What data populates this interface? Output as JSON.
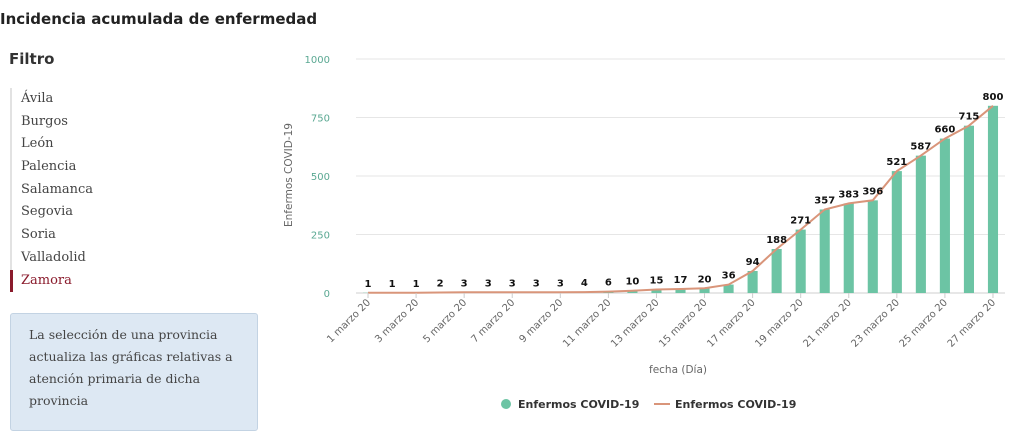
{
  "page_title": "Incidencia acumulada de enfermedad",
  "sidebar": {
    "title": "Filtro",
    "items": [
      {
        "label": "Ávila"
      },
      {
        "label": "Burgos"
      },
      {
        "label": "León"
      },
      {
        "label": "Palencia"
      },
      {
        "label": "Salamanca"
      },
      {
        "label": "Segovia"
      },
      {
        "label": "Soria"
      },
      {
        "label": "Valladolid"
      },
      {
        "label": "Zamora",
        "selected": true
      }
    ],
    "info_text": "La selección de una provincia actualiza las gráficas relativas a atención primaria de dicha provincia"
  },
  "colors": {
    "bar": "#6cc4a4",
    "line": "#d9957a",
    "selected": "#8a1b2c",
    "info_bg": "#dde8f3"
  },
  "chart_data": {
    "type": "bar",
    "xlabel": "fecha (Día)",
    "ylabel": "Enfermos COVID-19",
    "ylim": [
      0,
      1000
    ],
    "yticks": [
      0,
      250,
      500,
      750,
      1000
    ],
    "grid": true,
    "legend_position": "bottom",
    "categories": [
      "1 marzo 20",
      "2 marzo 20",
      "3 marzo 20",
      "4 marzo 20",
      "5 marzo 20",
      "6 marzo 20",
      "7 marzo 20",
      "8 marzo 20",
      "9 marzo 20",
      "10 marzo 20",
      "11 marzo 20",
      "12 marzo 20",
      "13 marzo 20",
      "14 marzo 20",
      "15 marzo 20",
      "16 marzo 20",
      "17 marzo 20",
      "18 marzo 20",
      "19 marzo 20",
      "20 marzo 20",
      "21 marzo 20",
      "22 marzo 20",
      "23 marzo 20",
      "24 marzo 20",
      "25 marzo 20",
      "26 marzo 20",
      "27 marzo 20"
    ],
    "tick_labels": [
      "1 marzo 20",
      "3 marzo 20",
      "5 marzo 20",
      "7 marzo 20",
      "9 marzo 20",
      "11 marzo 20",
      "13 marzo 20",
      "15 marzo 20",
      "17 marzo 20",
      "19 marzo 20",
      "21 marzo 20",
      "23 marzo 20",
      "25 marzo 20",
      "27 marzo 20"
    ],
    "series": [
      {
        "name": "Enfermos COVID-19",
        "kind": "bar",
        "values": [
          1,
          1,
          1,
          2,
          3,
          3,
          3,
          3,
          3,
          4,
          6,
          10,
          15,
          17,
          20,
          36,
          94,
          188,
          271,
          357,
          383,
          396,
          521,
          587,
          660,
          715,
          800
        ]
      },
      {
        "name": "Enfermos COVID-19",
        "kind": "line",
        "values": [
          1,
          1,
          1,
          2,
          3,
          3,
          3,
          3,
          3,
          4,
          6,
          10,
          15,
          17,
          20,
          36,
          94,
          188,
          271,
          357,
          383,
          396,
          521,
          587,
          660,
          715,
          800
        ]
      }
    ]
  }
}
